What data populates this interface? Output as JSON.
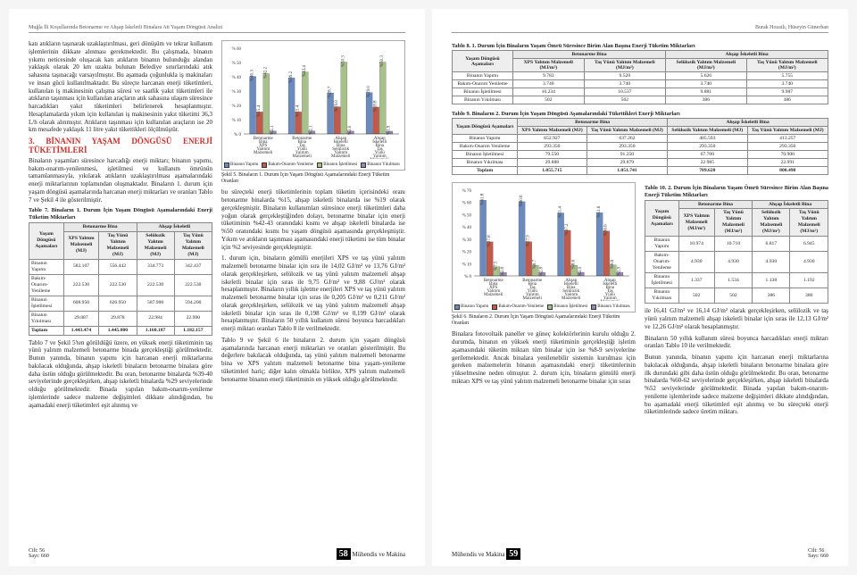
{
  "header": {
    "left": "Muğla İli Koşullarında Betonarme ve Ahşap İskeletli Binalara Ait Yaşam Döngüsü Analizi",
    "right": "Burak Hozatlı, Hüseyin Günerhan"
  },
  "footer": {
    "journal": "Mühendis ve Makina",
    "issueLabel": "Cilt: 56\nSayı: 660",
    "pageLeft": "58",
    "pageRight": "59"
  },
  "leftPage": {
    "para1": "katı atıkların taşınarak uzaklaştırılması, geri dönüşüm ve tekrar kullanım işlemlerinin dikkate alınması gerekmektedir. Bu çalışmada, binanın yıkımı neticesinde oluşacak katı atıkların binanın bulunduğu alandan yaklaşık olarak 20 km uzakta bulunan Belediye sınırlarındaki atık sahasına taşınacağı varsayılmıştır. Bu aşamada çoğunlukla iş makinaları ve insan gücü kullanılmaktadır. Bu süreçte harcanan enerji tüketimleri, kullanılan iş makinesinin çalışma süresi ve saatlik yakıt tüketimleri ile atıkların taşınması için kullanılan araçların atık sahasına ulaşım süresince harcadıkları yakıt tüketimleri belirlenerek hesaplanmıştır. Hesaplamalarda yıkım için kullanılan iş makinesinin yakıt tüketimi 36,3 L/h olarak alınmıştır. Atıkların taşınması için kullanılan araçların ise 20 km mesafede yaklaşık 11 litre yakıt tükettikleri ölçülmüştür.",
    "secTitle": "3. BİNANIN YAŞAM DÖNGÜSÜ ENERJİ TÜKETİMLERİ",
    "para2": "Binaların yaşamları süresince harcadığı enerji miktarı; binanın yapımı, bakım-onarım-yenilenmesi, işletilmesi ve kullanım ömrünün tamamlanmasıyla, yıkılarak atıkların uzaklaştırılması aşamalarındaki enerji miktarlarının toplamından oluşmaktadır. Binaların 1. durum için yaşam döngüsü aşamalarında harcanan enerji miktarları ve oranları Tablo 7 ve Şekil 4 ile gösterilmiştir.",
    "para3": "Tablo 7 ve Şekil 5'ten görüldüğü üzere, en yüksek enerji tüketiminin taş yünü yalıtım malzemeli betonarme binada gerçekleştiği görülmektedir. Bunun yanında, binanın yapımı için harcanan enerji miktarlarına bakılacak olduğunda, ahşap iskeletli binaların betonarme binalara göre daha üstün olduğu görülmektedir. Bu oran, betonarme binalarda %39-40 seviyelerinde gerçekleşirken, ahşap iskeletli binalarda %29 seviyelerinde olduğu görülmektedir. Binada yapılan bakım-onarım-yenileme işlemlerinde sadece malzeme değişimleri dikkate alındığından, bu aşamadaki enerji tüketimleri eşit alınmış ve",
    "rightCol1": "bu süreçteki enerji tüketimlerinin toplam tüketim içerisindeki oranı betonarme binalarda %15, ahşap iskeletli binalarda ise %19 olarak gerçekleşmiştir. Binaların kullanımları süresince enerji tüketimleri daha yoğun olarak gerçekleştiğinden dolayı, betonarme binalar için enerji tüketiminin %42-43 oranındaki kısmı ve ahşap iskeletli binalarda ise %50 oranındaki kısmı bu yaşam döngüsü aşamasında gerçekleşmiştir. Yıkım ve atıkların taşınması aşamasındaki enerji tüketimi ise tüm binalar için %2 seviyesinde gerçekleşmiştir.",
    "rightCol2": "1. durum için, binaların gömülü enerjileri XPS ve taş yünü yalıtım malzemeli betonarme binalar için sıra ile 14,02 GJ/m² ve 13,76 GJ/m² olarak gerçekleşirken, selülozik ve taş yünü yalıtım malzemeli ahşap iskeletli binalar için sıras ile 9,75 GJ/m² ve 9,88 GJ/m² olarak hesaplanmıştır. Binaların yıllık işletme enerjileri XPS ve taş yünü yalıtım malzemeli betonarme binalar için sıras ile 0,205 GJ/m² ve 0,211 GJ/m² olarak gerçekleşirken, selülozik ve taş yünü yalıtım malzemeli ahşap iskeletli binalar için sıras ile 0,198 GJ/m² ve 0,199 GJ/m² olarak hesaplanmıştır. Binaların 50 yıllık kullanım süresi boyunca harcadıkları enerji miktarı oranları Tablo 8 ile verilmektedir.",
    "rightCol3": "Tablo 9 ve Şekil 6 ile binaların 2. durum için yaşam döngüsü aşamalarında harcanan enerji miktarları ve oranları gösterilmiştir. Bu değerlere bakılacak olduğunda, taş yünü yalıtım malzemeli betonarme bina ve XPS yalıtım malzemeli betonarme bina yaşam-yenileme tüketimleri hariç; diğer kalın olmakla birlikte, XPS yalıtım malzemeli betonarme binanın enerji tüketiminin en yüksek olduğu görülmektedir."
  },
  "tbl7": {
    "caption": "Tablo 7. Binaların 1. Durum İçin Yaşam Döngüsü Aşamalarındaki Enerji Tüketim Miktarları",
    "groupB": "Betonarme Bina",
    "groupA": "Ahşap İskeletli",
    "h1": "Yaşam Döngüsü Aşamaları",
    "h2": "XPS Yalıtım Malzemeli (MJ)",
    "h3": "Taş Yünü Yalıtım Malzemeli (MJ)",
    "h4": "Selülozik Yalıtım Malzemeli (MJ)",
    "h5": "Taş Yünü Yalıtım Malzemeli (MJ)",
    "rows": [
      [
        "Binanın Yapımı",
        "582.107",
        "556.442",
        "334.773",
        "342.437"
      ],
      [
        "Bakım-Onarım-Yenileme",
        "222.530",
        "222.530",
        "222.530",
        "222.530"
      ],
      [
        "Binanın İşletilmesi",
        "608.950",
        "626.950",
        "587.900",
        "594.200"
      ],
      [
        "Binanın Yıkılması",
        "29.887",
        "29.878",
        "22.984",
        "22.990"
      ]
    ],
    "total": [
      "Toplam",
      "1.443.474",
      "1.445.800",
      "1.168.187",
      "1.182.157"
    ]
  },
  "chart5": {
    "caption": "Şekil 5. Binaların 1. Durum İçin Yaşam Döngüsü Aşamalarındaki Enerji Tüketim Oranları",
    "ylabel": "%",
    "ymax": 60,
    "ystep": 10,
    "categories": [
      "Betonarme Bina XPS Yalıtım Malzemeli",
      "Betonarme Bina Taş Yünü Yalıtım Malzemeli",
      "Ahşap İskeletli Bina Selülozik Yalıtım Malzemeli",
      "Ahşap İskeletli Bina Taş Yünü Yalıtım Malzemeli"
    ],
    "series": [
      {
        "name": "Binanın Yapımı",
        "color": "#6b8bbf",
        "values": [
          40.3,
          39.2,
          28.7,
          29.0
        ]
      },
      {
        "name": "Bakım-Onarım-Yenileme",
        "color": "#c05a4a",
        "values": [
          15.4,
          15.4,
          19.0,
          18.8
        ]
      },
      {
        "name": "Binanın İşletilmesi",
        "color": "#a8c08a",
        "values": [
          42.2,
          43.4,
          50.3,
          50.3
        ]
      },
      {
        "name": "Binanın Yıkılması",
        "color": "#9b86b8",
        "values": [
          2.1,
          2.1,
          2.0,
          1.9
        ]
      }
    ]
  },
  "tbl8": {
    "caption": "Tablo 8. 1. Durum İçin Binaların Yaşam Ömrü Süresince Birim Alan Başına Enerji Tüketim Miktarları",
    "groupB": "Betonarme Bina",
    "groupA": "Ahşap İskeletli Bina",
    "h1": "Yaşam Döngüsü Aşamaları",
    "h2": "XPS Yalıtım Malzemeli (MJ/m²)",
    "h3": "Taş Yünü Yalıtım Malzemeli (MJ/m²)",
    "h4": "Selülozik Yalıtım Malzemeli (MJ/m²)",
    "h5": "Taş Yünü Yalıtım Malzemeli (MJ/m²)",
    "rows": [
      [
        "Binanın Yapımı",
        "9.783",
        "9.520",
        "5.626",
        "5.755"
      ],
      [
        "Bakım-Onarım Yenileme",
        "3.740",
        "3.740",
        "3.740",
        "3.740"
      ],
      [
        "Binanın İşletilmesi",
        "10.234",
        "10.537",
        "9.881",
        "9.987"
      ],
      [
        "Binanın Yıkılması",
        "502",
        "502",
        "386",
        "386"
      ]
    ]
  },
  "tbl9": {
    "caption": "Tablo 9. Binaların 2. Durum İçin Yaşam Döngüsü Aşamalarındaki Tükettikleri Enerji Miktarları",
    "rows": [
      [
        "Binanın Yapımı",
        "652.927",
        "637.262",
        "405.593",
        "413.257"
      ],
      [
        "Bakım-Onarım Yenileme",
        "293.350",
        "293.350",
        "293.350",
        "293.350"
      ],
      [
        "Binanın İşletilmesi",
        "79.550",
        "91.250",
        "67.700",
        "70.900"
      ],
      [
        "Binanın Yıkılması",
        "29.888",
        "29.879",
        "22.985",
        "22.991"
      ]
    ],
    "total": [
      "Toplam",
      "1.055.715",
      "1.051.741",
      "789.628",
      "800.498"
    ]
  },
  "tbl10": {
    "caption": "Tablo 10. 2. Durum İçin Binaların Yaşam Ömrü Süresince Birim Alan Başına Enerji Tüketim Miktarları",
    "h2": "XPS Yalıtım Malzemeli (MJ/m²)",
    "h3": "Taş Yünü Yalıtım Malzemeli (MJ/m²)",
    "h4": "Selülozik Yalıtım Malzemeli (MJ/m²)",
    "h5": "Taş Yünü Yalıtım Malzemeli (MJ/m²)",
    "rows": [
      [
        "Binanın Yapımı",
        "10.974",
        "10.710",
        "6.817",
        "6.945"
      ],
      [
        "Bakım-Onarım-Yenileme",
        "4.930",
        "4.930",
        "4.930",
        "4.930"
      ],
      [
        "Binanın İşletilmesi",
        "1.337",
        "1.534",
        "1.138",
        "1.192"
      ],
      [
        "Binanın Yıkılması",
        "502",
        "502",
        "386",
        "386"
      ]
    ]
  },
  "chart6": {
    "caption": "Şekil 6. Binaların 2. Durum İçin Yaşam Döngüsü Aşamalarındaki Enerji Tüketim Oranları",
    "ymax": 70,
    "ystep": 10,
    "series": [
      {
        "name": "Binanın Yapımı",
        "color": "#6b8bbf",
        "values": [
          61.8,
          60.6,
          51.4,
          51.6
        ]
      },
      {
        "name": "Bakım-Onarım-Yenileme",
        "color": "#c05a4a",
        "values": [
          27.8,
          27.9,
          37.2,
          36.6
        ]
      },
      {
        "name": "Binanın İşletilmesi",
        "color": "#a8c08a",
        "values": [
          7.5,
          8.7,
          8.6,
          8.9
        ]
      },
      {
        "name": "Binanın Yıkılması",
        "color": "#9b86b8",
        "values": [
          2.8,
          2.8,
          2.9,
          2.9
        ]
      }
    ]
  },
  "rightPage": {
    "para1": "Binalara fotovoltaik paneller ve güneç kolektörlerinin kurulu olduğu 2. durumda, binanın en yüksek enerji tüketiminin gerçekleştiği işletim aşamasındaki tüketim miktarı tüm binalar için ise %8-9 seviyelerine gerilemektedir. Ancak binalara yenilenebilir sistemin kurulması için gereken malzemelerin binanın aşamasındaki enerji tüketimlerinin yükselmesine neden olmuştur. 2. durum için, binaların gömülü enerji miktarı XPS ve taş yünü yalıtım malzemeli betonarme binalar için sıras",
    "para2": "ile 16,41 GJ/m² ve 16,14 GJ/m² olarak gerçekleşirken, selülozik ve taş yünü yalıtım malzemeli ahşap iskeletli binalar için sıras ile 12,13 GJ/m² ve 12,26 GJ/m² olarak hesaplanmıştır.",
    "para3": "Binaların 50 yıllık kullanım süresi boyunca harcadıkları enerji miktarı oranları Tablo 10 ile verilmektedir.",
    "para4": "Bunun yanında, binanın yapımı için harcanan enerji miktarlarına bakılacak olduğunda, ahşap iskeletli binaların betonarme binalara göre ilk durundaki gibi daha üstün olduğu görülmektedir. Bu oran, betonarme binalarda %60-62 seviyelerinde gerçekleşirken, ahşap iskeletli binalarda %52 seviyelerinde görülmektedir. Binada yapılan bakım-onarım-yenileme işlemlerinde sadece malzeme değişimleri dikkate alındığından, bu aşamadaki enerji tüketimleri eşit alınmış ve bu süreçteki enerji tüketimlerinde sadece üretim miktarı."
  }
}
